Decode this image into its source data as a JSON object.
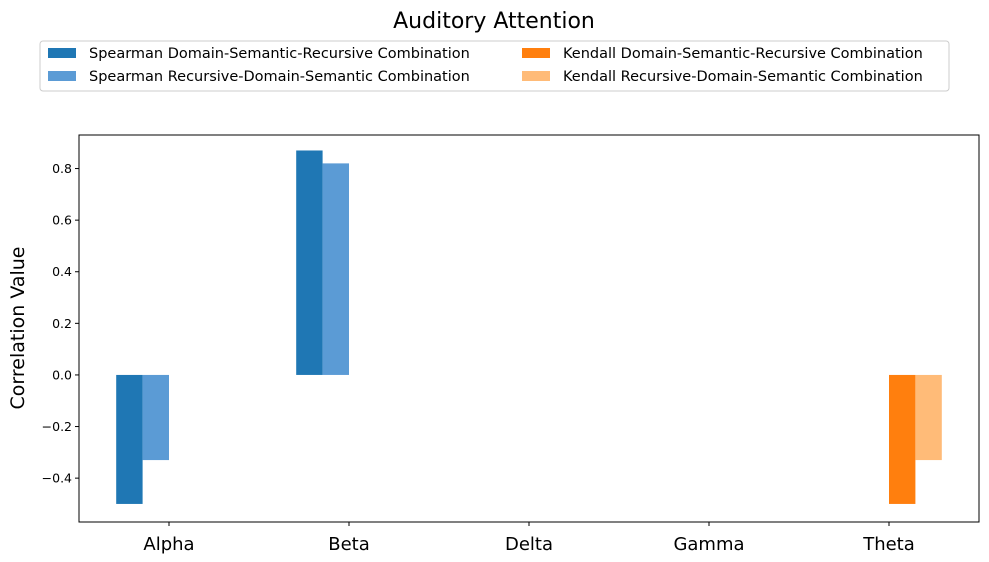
{
  "chart_data": {
    "type": "bar",
    "title": "Auditory Attention",
    "ylabel": "Correlation Value",
    "xlabel": "",
    "categories": [
      "Alpha",
      "Beta",
      "Delta",
      "Gamma",
      "Theta"
    ],
    "ylim": [
      -0.57,
      0.93
    ],
    "yticks": [
      -0.4,
      -0.2,
      0.0,
      0.2,
      0.4,
      0.6,
      0.8
    ],
    "ytick_labels": [
      "−0.4",
      "−0.2",
      "0.0",
      "0.2",
      "0.4",
      "0.6",
      "0.8"
    ],
    "grid": false,
    "legend_position": "top-center",
    "series": [
      {
        "name": "Spearman Domain-Semantic-Recursive Combination",
        "color": "#1f77b4",
        "values": [
          -0.5,
          0.87,
          null,
          null,
          null
        ]
      },
      {
        "name": "Spearman Recursive-Domain-Semantic Combination",
        "color": "#5b9bd5",
        "values": [
          -0.33,
          0.82,
          null,
          null,
          null
        ]
      },
      {
        "name": "Kendall Domain-Semantic-Recursive Combination",
        "color": "#ff7f0e",
        "values": [
          null,
          null,
          null,
          null,
          -0.5
        ]
      },
      {
        "name": "Kendall Recursive-Domain-Semantic Combination",
        "color": "#ffbb78",
        "values": [
          null,
          null,
          null,
          null,
          -0.33
        ]
      }
    ]
  }
}
